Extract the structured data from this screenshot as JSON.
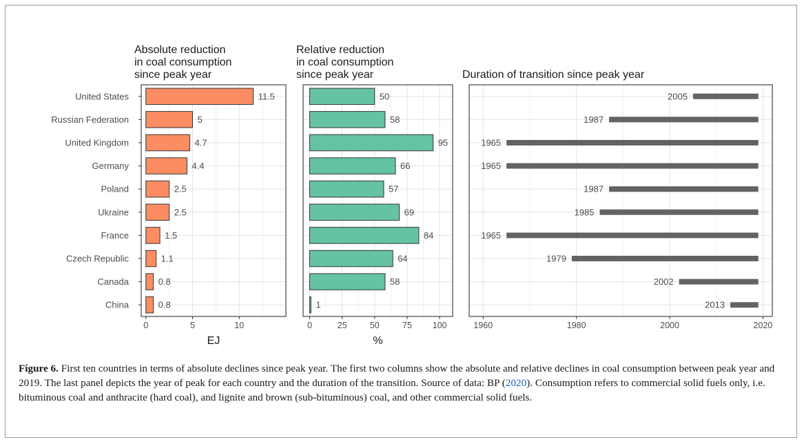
{
  "chart_data": [
    {
      "type": "bar",
      "orientation": "horizontal",
      "title": "Absolute reduction in coal consumption since peak year",
      "title_lines": [
        "Absolute reduction",
        "in coal consumption",
        "since peak year"
      ],
      "xlabel": "EJ",
      "xlim": [
        -0.5,
        15
      ],
      "xticks": [
        0,
        5,
        10
      ],
      "categories": [
        "United States",
        "Russian Federation",
        "United Kingdom",
        "Germany",
        "Poland",
        "Ukraine",
        "France",
        "Czech Republic",
        "Canada",
        "China"
      ],
      "values": [
        11.5,
        5,
        4.7,
        4.4,
        2.5,
        2.5,
        1.5,
        1.1,
        0.8,
        0.8
      ],
      "labels": [
        "11.5",
        "5",
        "4.7",
        "4.4",
        "2.5",
        "2.5",
        "1.5",
        "1.1",
        "0.8",
        "0.8"
      ],
      "color": "#fc8d62",
      "grid": true
    },
    {
      "type": "bar",
      "orientation": "horizontal",
      "title": "Relative reduction in coal consumption since peak year",
      "title_lines": [
        "Relative reduction",
        "in coal consumption",
        "since peak year"
      ],
      "xlabel": "%",
      "xlim": [
        -5,
        110
      ],
      "xticks": [
        0,
        25,
        50,
        75,
        100
      ],
      "categories": [
        "United States",
        "Russian Federation",
        "United Kingdom",
        "Germany",
        "Poland",
        "Ukraine",
        "France",
        "Czech Republic",
        "Canada",
        "China"
      ],
      "values": [
        50,
        58,
        95,
        66,
        57,
        69,
        84,
        64,
        58,
        1
      ],
      "labels": [
        "50",
        "58",
        "95",
        "66",
        "57",
        "69",
        "84",
        "64",
        "58",
        "1"
      ],
      "color": "#66c2a5",
      "grid": true
    },
    {
      "type": "range",
      "title": "Duration of transition since peak year",
      "title_lines": [
        "Duration of transition since peak year"
      ],
      "xlabel": "",
      "xlim": [
        1957,
        2022
      ],
      "xticks": [
        1960,
        1980,
        2000,
        2020
      ],
      "categories": [
        "United States",
        "Russian Federation",
        "United Kingdom",
        "Germany",
        "Poland",
        "Ukraine",
        "France",
        "Czech Republic",
        "Canada",
        "China"
      ],
      "start": [
        2005,
        1987,
        1965,
        1965,
        1987,
        1985,
        1965,
        1979,
        2002,
        2013
      ],
      "end": [
        2019,
        2019,
        2019,
        2019,
        2019,
        2019,
        2019,
        2019,
        2019,
        2019
      ],
      "labels": [
        "2005",
        "1987",
        "1965",
        "1965",
        "1987",
        "1985",
        "1965",
        "1979",
        "2002",
        "2013"
      ],
      "color": "#636363",
      "grid": true
    }
  ],
  "caption": {
    "figure_label": "Figure 6.",
    "text_before_ref": " First ten countries in terms of absolute declines since peak year. The first two columns show the absolute and relative declines in coal consumption between peak year and 2019. The last panel depicts the year of peak for each country and the duration of the transition. Source of data: BP (",
    "ref": "2020",
    "text_after_ref": "). Consumption refers to commercial solid fuels only, i.e. bituminous coal and anthracite (hard coal), and lignite and brown (sub-bituminous) coal, and other commercial solid fuels."
  }
}
